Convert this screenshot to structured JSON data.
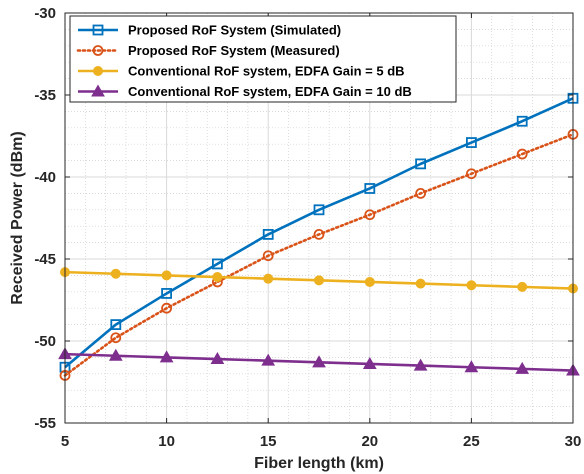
{
  "chart_data": {
    "type": "line",
    "xlabel": "Fiber length (km)",
    "ylabel": "Received Power (dBm)",
    "xlim": [
      5,
      30
    ],
    "ylim": [
      -55,
      -30
    ],
    "xticks": [
      5,
      10,
      15,
      20,
      25,
      30
    ],
    "yticks": [
      -30,
      -35,
      -40,
      -45,
      -50,
      -55
    ],
    "grid": "on (major solid, minor dotted)",
    "legend_position": "top-left",
    "x": [
      5,
      7.5,
      10,
      12.5,
      15,
      17.5,
      20,
      22.5,
      25,
      27.5,
      30
    ],
    "series": [
      {
        "name": "Proposed RoF System (Simulated)",
        "color": "#0072BD",
        "line_style": "solid",
        "marker": "square",
        "values": [
          -51.6,
          -49.0,
          -47.1,
          -45.3,
          -43.5,
          -42.0,
          -40.7,
          -39.2,
          -37.9,
          -36.6,
          -35.2
        ]
      },
      {
        "name": "Proposed RoF System (Measured)",
        "color": "#D95319",
        "line_style": "dotted",
        "marker": "circle",
        "values": [
          -52.1,
          -49.8,
          -48.0,
          -46.4,
          -44.8,
          -43.5,
          -42.3,
          -41.0,
          -39.8,
          -38.6,
          -37.4
        ]
      },
      {
        "name": "Conventional RoF system, EDFA Gain = 5 dB",
        "color": "#EDB120",
        "line_style": "solid",
        "marker": "circle-filled",
        "values": [
          -45.8,
          -45.9,
          -46.0,
          -46.1,
          -46.2,
          -46.3,
          -46.4,
          -46.5,
          -46.6,
          -46.7,
          -46.8
        ]
      },
      {
        "name": "Conventional RoF system, EDFA Gain = 10 dB",
        "color": "#7E2F8E",
        "line_style": "solid",
        "marker": "triangle",
        "values": [
          -50.8,
          -50.9,
          -51.0,
          -51.1,
          -51.2,
          -51.3,
          -51.4,
          -51.5,
          -51.6,
          -51.7,
          -51.8
        ]
      }
    ]
  }
}
